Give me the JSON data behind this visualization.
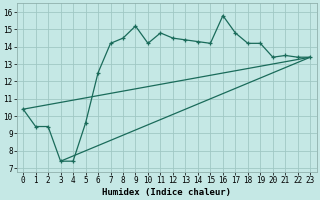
{
  "xlabel": "Humidex (Indice chaleur)",
  "background_color": "#c5e8e5",
  "grid_color": "#a0c8c4",
  "line_color": "#1a6b5a",
  "xlim": [
    -0.5,
    23.5
  ],
  "ylim": [
    6.8,
    16.5
  ],
  "yticks": [
    7,
    8,
    9,
    10,
    11,
    12,
    13,
    14,
    15,
    16
  ],
  "xticks": [
    0,
    1,
    2,
    3,
    4,
    5,
    6,
    7,
    8,
    9,
    10,
    11,
    12,
    13,
    14,
    15,
    16,
    17,
    18,
    19,
    20,
    21,
    22,
    23
  ],
  "main_x": [
    0,
    1,
    2,
    3,
    4,
    5,
    6,
    7,
    8,
    9,
    10,
    11,
    12,
    13,
    14,
    15,
    16,
    17,
    18,
    19,
    20,
    21,
    22,
    23
  ],
  "main_y": [
    10.4,
    9.4,
    9.4,
    7.4,
    7.4,
    9.6,
    12.5,
    14.2,
    14.5,
    15.2,
    14.2,
    14.8,
    14.5,
    14.4,
    14.3,
    14.2,
    15.8,
    14.8,
    14.2,
    14.2,
    13.4,
    13.5,
    13.4,
    13.4
  ],
  "line1_x": [
    0,
    23
  ],
  "line1_y": [
    10.4,
    13.4
  ],
  "line2_x": [
    3,
    23
  ],
  "line2_y": [
    7.4,
    13.4
  ]
}
